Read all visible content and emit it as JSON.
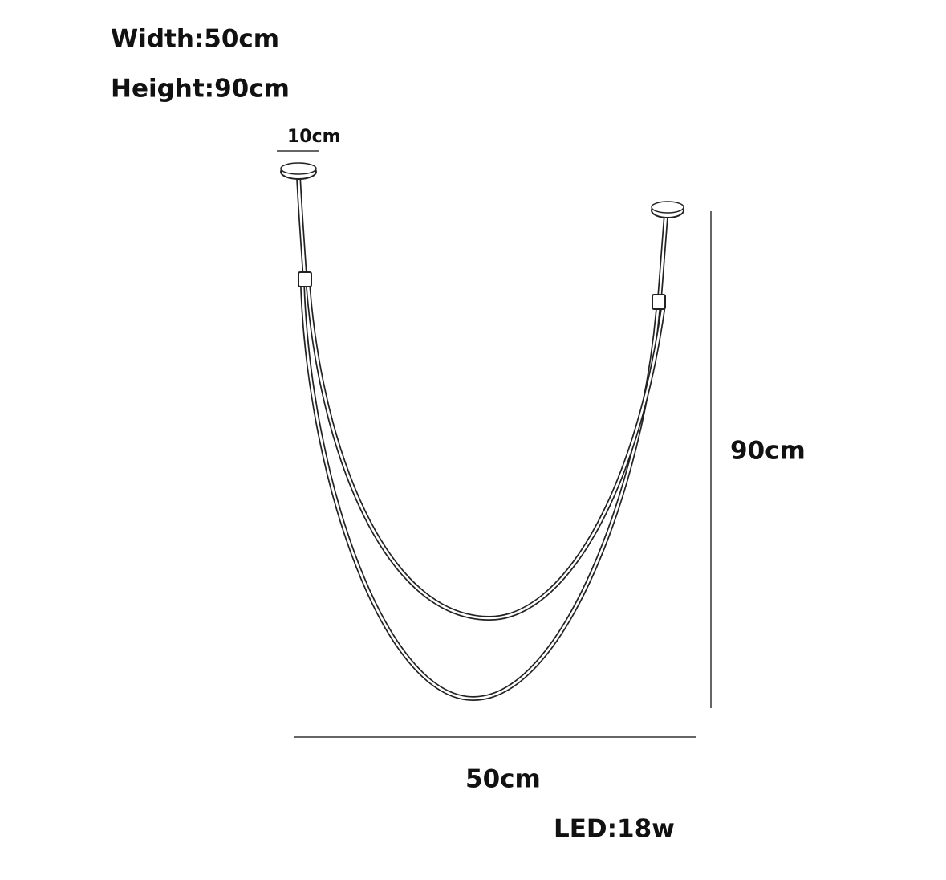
{
  "specs": {
    "width": "Width:50cm",
    "height": "Height:90cm"
  },
  "dimensions": {
    "canopy": "10cm",
    "height": "90cm",
    "width": "50cm"
  },
  "power": "LED:18w"
}
